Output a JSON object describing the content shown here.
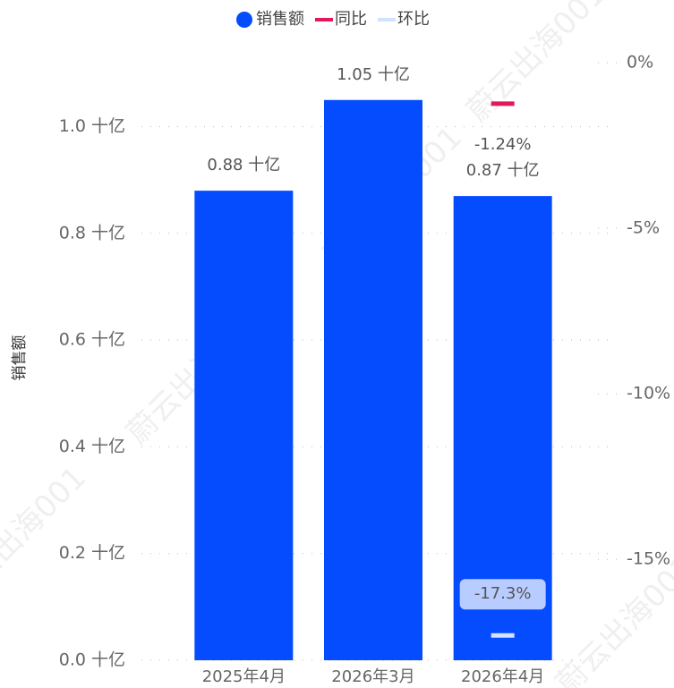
{
  "chart_data": {
    "type": "bar",
    "categories": [
      "2025年4月",
      "2026年3月",
      "2026年4月"
    ],
    "ylabel": "销售额",
    "ylim": [
      0,
      1.12
    ],
    "yticks": [
      {
        "value": 0,
        "label": "0.0 十亿"
      },
      {
        "value": 0.2,
        "label": "0.2 十亿"
      },
      {
        "value": 0.4,
        "label": "0.4 十亿"
      },
      {
        "value": 0.6,
        "label": "0.6 十亿"
      },
      {
        "value": 0.8,
        "label": "0.8 十亿"
      },
      {
        "value": 1.0,
        "label": "1.0 十亿"
      }
    ],
    "y2lim": [
      -18.05,
      0
    ],
    "y2ticks": [
      {
        "value": 0,
        "label": "0%"
      },
      {
        "value": -5,
        "label": "-5%"
      },
      {
        "value": -10,
        "label": "-10%"
      },
      {
        "value": -15,
        "label": "-15%"
      }
    ],
    "grid": true,
    "legend": "top",
    "series": [
      {
        "name": "销售额",
        "color": "#054cff",
        "values": [
          0.88,
          1.05,
          0.87
        ],
        "value_labels": [
          "0.88 十亿",
          "1.05 十亿",
          "0.87 十亿"
        ]
      },
      {
        "name": "同比",
        "color": "#e0185c",
        "axis": "y2",
        "values": [
          null,
          null,
          -1.24
        ],
        "value_labels": [
          null,
          null,
          "-1.24%"
        ]
      },
      {
        "name": "环比",
        "color": "#d4e0ff",
        "axis": "y2",
        "values": [
          null,
          null,
          -17.3
        ],
        "value_labels": [
          null,
          null,
          "-17.3%"
        ]
      }
    ],
    "watermark": "蔚云出海001"
  }
}
